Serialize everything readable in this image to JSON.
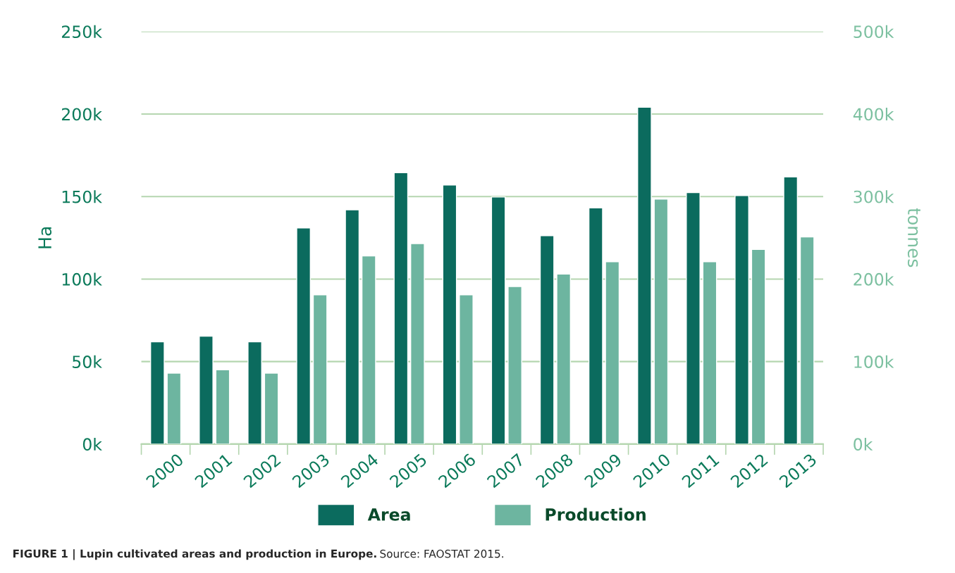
{
  "chart_data": {
    "type": "bar",
    "title": "FIGURE 1 | Lupin cultivated areas and production in Europe.",
    "annotations": [
      "Source: FAOSTAT 2015."
    ],
    "ylabel": "Ha",
    "y2label": "tonnes",
    "categories": [
      "2000",
      "2001",
      "2002",
      "2003",
      "2004",
      "2005",
      "2006",
      "2007",
      "2008",
      "2009",
      "2010",
      "2011",
      "2012",
      "2013"
    ],
    "series": [
      {
        "name": "Area",
        "color": "#0b6b5e",
        "values": [
          62000,
          65400,
          62000,
          131000,
          142000,
          164500,
          157000,
          149700,
          126300,
          143100,
          204100,
          152400,
          150600,
          161900
        ]
      },
      {
        "name": "Production",
        "color": "#6db5a0",
        "axis": "y2",
        "values": [
          86000,
          90000,
          86000,
          181000,
          228000,
          243000,
          181000,
          191000,
          206000,
          221000,
          297000,
          221000,
          236000,
          251000
        ]
      }
    ],
    "ylim": [
      0,
      250000
    ],
    "yticks": [
      {
        "value": 0,
        "label": "0k"
      },
      {
        "value": 50000,
        "label": "50k"
      },
      {
        "value": 100000,
        "label": "100k"
      },
      {
        "value": 150000,
        "label": "150k"
      },
      {
        "value": 200000,
        "label": "200k"
      },
      {
        "value": 250000,
        "label": "250k"
      }
    ],
    "y2lim": [
      0,
      500000
    ],
    "y2ticks": [
      {
        "value": 0,
        "label": "0k"
      },
      {
        "value": 100000,
        "label": "100k"
      },
      {
        "value": 200000,
        "label": "200k"
      },
      {
        "value": 300000,
        "label": "300k"
      },
      {
        "value": 400000,
        "label": "400k"
      },
      {
        "value": 500000,
        "label": "500k"
      }
    ],
    "grid": "y",
    "legend": "bottom"
  }
}
